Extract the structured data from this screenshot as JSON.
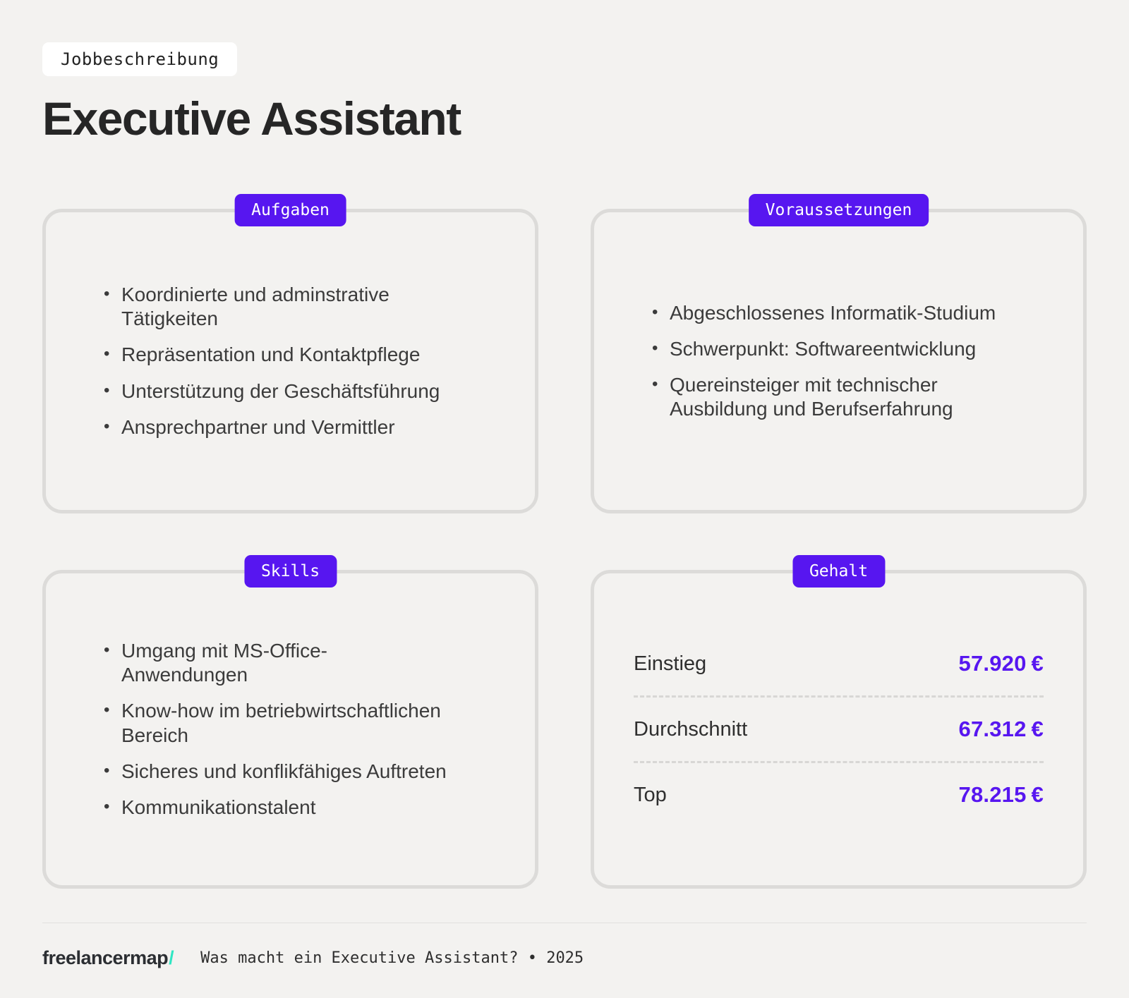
{
  "page": {
    "tag": "Jobbeschreibung",
    "title": "Executive Assistant",
    "footer": {
      "brand": "freelancermap",
      "brand_slash": "/",
      "text": "Was macht ein Executive Assistant? • 2025"
    }
  },
  "colors": {
    "background": "#f3f2f0",
    "card_border": "#dcdbd9",
    "accent_purple": "#5716f0",
    "brand_teal": "#2fe6c3",
    "text_dark": "#262626"
  },
  "cards": [
    {
      "id": "aufgaben",
      "badge": "Aufgaben",
      "bullets": [
        "Koordinierte und adminstrative\nTätigkeiten",
        "Repräsentation und Kontaktpflege",
        "Unterstützung der Geschäftsführung",
        "Ansprechpartner und Vermittler"
      ]
    },
    {
      "id": "voraussetzungen",
      "badge": "Voraussetzungen",
      "bullets": [
        "Abgeschlossenes Informatik-Studium",
        "Schwerpunkt: Softwareentwicklung",
        "Quereinsteiger mit technischer\nAusbildung und Berufserfahrung"
      ]
    },
    {
      "id": "skills",
      "badge": "Skills",
      "bullets": [
        "Umgang mit MS-Office-\nAnwendungen",
        "Know-how im betriebwirtschaftlichen\nBereich",
        "Sicheres und konflikfähiges Auftreten",
        "Kommunikationstalent"
      ]
    },
    {
      "id": "gehalt",
      "badge": "Gehalt",
      "rows": [
        {
          "label": "Einstieg",
          "value": "57.920",
          "currency": "€"
        },
        {
          "label": "Durchschnitt",
          "value": "67.312",
          "currency": "€"
        },
        {
          "label": "Top",
          "value": "78.215",
          "currency": "€"
        }
      ]
    }
  ]
}
